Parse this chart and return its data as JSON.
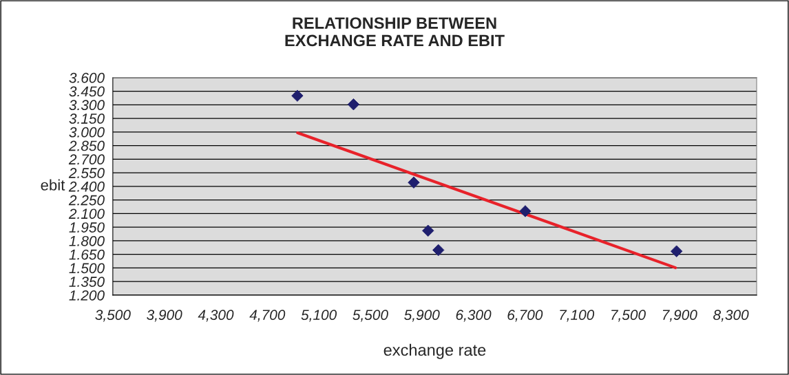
{
  "chart_data": {
    "type": "scatter",
    "title": "RELATIONSHIP BETWEEN\nEXCHANGE RATE AND EBIT",
    "xlabel": "exchange rate",
    "ylabel": "ebit",
    "series": [
      {
        "marker": "diamond",
        "color": "#1f1f6e",
        "x": [
          4933,
          5369,
          5837,
          5948,
          6028,
          6703,
          7878
        ],
        "values": [
          3.4,
          3.305,
          2.443,
          1.911,
          1.697,
          2.126,
          1.684
        ]
      },
      {
        "type": "line",
        "marker": "none",
        "color": "#e8222a",
        "x": [
          4935,
          7870
        ],
        "values": [
          2.991,
          1.502
        ]
      }
    ],
    "grid": "y",
    "xlim": [
      3500,
      8500
    ],
    "xticks": [
      {
        "value": 3500,
        "label": "3,500"
      },
      {
        "value": 3900,
        "label": "3,900"
      },
      {
        "value": 4300,
        "label": "4,300"
      },
      {
        "value": 4700,
        "label": "4,700"
      },
      {
        "value": 5100,
        "label": "5,100"
      },
      {
        "value": 5500,
        "label": "5,500"
      },
      {
        "value": 5900,
        "label": "5,900"
      },
      {
        "value": 6300,
        "label": "6,300"
      },
      {
        "value": 6700,
        "label": "6,700"
      },
      {
        "value": 7100,
        "label": "7,100"
      },
      {
        "value": 7500,
        "label": "7,500"
      },
      {
        "value": 7900,
        "label": "7,900"
      },
      {
        "value": 8300,
        "label": "8,300"
      }
    ],
    "ylim": [
      1.2,
      3.6
    ],
    "yticks": [
      {
        "value": 1.2,
        "label": "1.200"
      },
      {
        "value": 1.35,
        "label": "1.350"
      },
      {
        "value": 1.5,
        "label": "1.500"
      },
      {
        "value": 1.65,
        "label": "1.650"
      },
      {
        "value": 1.8,
        "label": "1.800"
      },
      {
        "value": 1.95,
        "label": "1.950"
      },
      {
        "value": 2.1,
        "label": "2.100"
      },
      {
        "value": 2.25,
        "label": "2.250"
      },
      {
        "value": 2.4,
        "label": "2.400"
      },
      {
        "value": 2.55,
        "label": "2.550"
      },
      {
        "value": 2.7,
        "label": "2.700"
      },
      {
        "value": 2.85,
        "label": "2.850"
      },
      {
        "value": 3.0,
        "label": "3.000"
      },
      {
        "value": 3.15,
        "label": "3.150"
      },
      {
        "value": 3.3,
        "label": "3.300"
      },
      {
        "value": 3.45,
        "label": "3.450"
      },
      {
        "value": 3.6,
        "label": "3.600"
      }
    ]
  }
}
